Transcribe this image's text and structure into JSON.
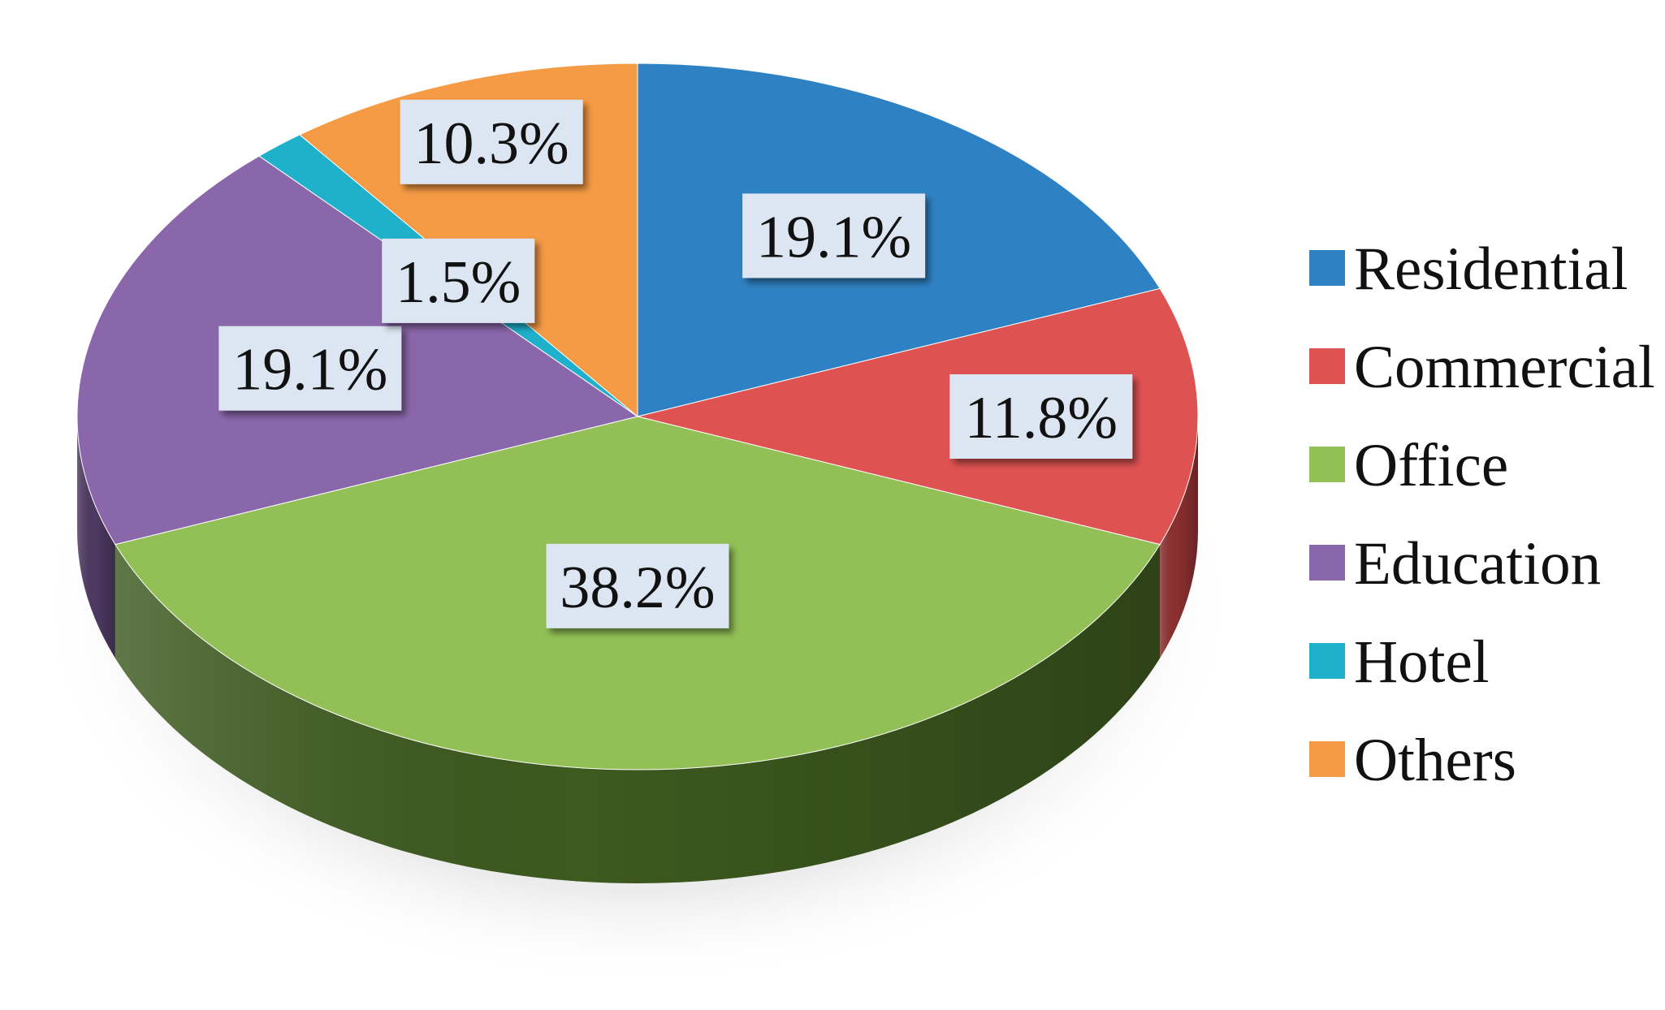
{
  "chart_data": {
    "type": "pie",
    "style": "3d",
    "title": "",
    "legend_position": "right",
    "categories": [
      "Residential",
      "Commercial",
      "Office",
      "Education",
      "Hotel",
      "Others"
    ],
    "values": [
      19.1,
      11.8,
      38.2,
      19.1,
      1.5,
      10.3
    ],
    "data_labels": [
      "19.1%",
      "11.8%",
      "38.2%",
      "19.1%",
      "1.5%",
      "10.3%"
    ],
    "colors": [
      "#2e82c3",
      "#df5252",
      "#92c056",
      "#8a67aa",
      "#1fb0cb",
      "#f59a45"
    ],
    "side_colors": [
      "#1c527b",
      "#8c2f2f",
      "#3d5a1f",
      "#4e3a63",
      "#127283",
      "#9e5e24"
    ],
    "label_box_color": "#dce6f2"
  }
}
